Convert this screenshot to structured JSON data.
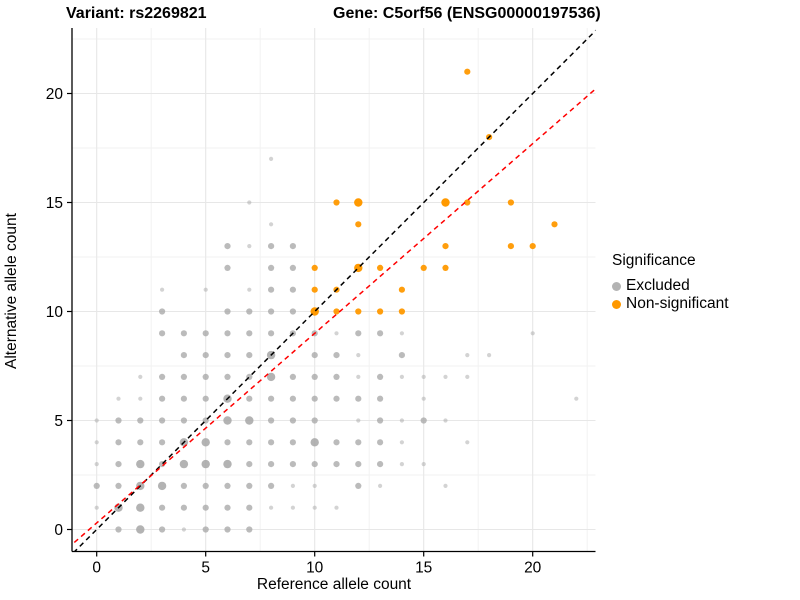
{
  "title": {
    "variant": "Variant: rs2269821",
    "gene": "Gene: C5orf56 (ENSG00000197536)"
  },
  "legend": {
    "title": "Significance",
    "items": [
      {
        "label": "Excluded",
        "color": "#B3B3B3"
      },
      {
        "label": "Non-significant",
        "color": "#FF9900"
      }
    ]
  },
  "chart_data": {
    "type": "scatter",
    "title": "Variant: rs2269821   Gene: C5orf56 (ENSG00000197536)",
    "xlabel": "Reference allele count",
    "ylabel": "Alternative allele count",
    "xlim": [
      -1.15,
      22.9
    ],
    "ylim": [
      -1.05,
      23.0
    ],
    "x_ticks": [
      0,
      5,
      10,
      15,
      20
    ],
    "y_ticks": [
      0,
      5,
      10,
      15,
      20
    ],
    "minor_ticks": [
      2.5,
      7.5,
      12.5,
      17.5,
      22.5
    ],
    "grid": true,
    "legend_position": "right",
    "point_colors": {
      "excluded": "#A8A8A8",
      "non_significant": "#FF9900"
    },
    "series": [
      {
        "name": "Excluded",
        "color": "#A8A8A8",
        "points": [
          [
            1,
            0,
            "m"
          ],
          [
            2,
            0,
            "l"
          ],
          [
            3,
            0,
            "m"
          ],
          [
            4,
            0,
            "s"
          ],
          [
            5,
            0,
            "m"
          ],
          [
            6,
            0,
            "m"
          ],
          [
            7,
            0,
            "m"
          ],
          [
            0,
            1,
            "s"
          ],
          [
            1,
            1,
            "l"
          ],
          [
            2,
            1,
            "l"
          ],
          [
            3,
            1,
            "m"
          ],
          [
            4,
            1,
            "m"
          ],
          [
            5,
            1,
            "m"
          ],
          [
            6,
            1,
            "m"
          ],
          [
            7,
            1,
            "m"
          ],
          [
            8,
            1,
            "s"
          ],
          [
            9,
            1,
            "s"
          ],
          [
            10,
            1,
            "s"
          ],
          [
            11,
            1,
            "s"
          ],
          [
            0,
            2,
            "m"
          ],
          [
            1,
            2,
            "m"
          ],
          [
            2,
            2,
            "l"
          ],
          [
            3,
            2,
            "l"
          ],
          [
            4,
            2,
            "m"
          ],
          [
            5,
            2,
            "m"
          ],
          [
            6,
            2,
            "m"
          ],
          [
            7,
            2,
            "m"
          ],
          [
            8,
            2,
            "m"
          ],
          [
            9,
            2,
            "s"
          ],
          [
            10,
            2,
            "s"
          ],
          [
            12,
            2,
            "m"
          ],
          [
            13,
            2,
            "s"
          ],
          [
            16,
            2,
            "s"
          ],
          [
            0,
            3,
            "s"
          ],
          [
            1,
            3,
            "m"
          ],
          [
            2,
            3,
            "l"
          ],
          [
            3,
            3,
            "m"
          ],
          [
            4,
            3,
            "l"
          ],
          [
            5,
            3,
            "l"
          ],
          [
            6,
            3,
            "l"
          ],
          [
            7,
            3,
            "m"
          ],
          [
            8,
            3,
            "m"
          ],
          [
            9,
            3,
            "m"
          ],
          [
            10,
            3,
            "m"
          ],
          [
            11,
            3,
            "m"
          ],
          [
            12,
            3,
            "m"
          ],
          [
            13,
            3,
            "m"
          ],
          [
            14,
            3,
            "s"
          ],
          [
            15,
            3,
            "s"
          ],
          [
            0,
            4,
            "s"
          ],
          [
            1,
            4,
            "m"
          ],
          [
            2,
            4,
            "m"
          ],
          [
            3,
            4,
            "m"
          ],
          [
            4,
            4,
            "l"
          ],
          [
            5,
            4,
            "l"
          ],
          [
            6,
            4,
            "m"
          ],
          [
            7,
            4,
            "m"
          ],
          [
            8,
            4,
            "m"
          ],
          [
            9,
            4,
            "m"
          ],
          [
            10,
            4,
            "l"
          ],
          [
            11,
            4,
            "m"
          ],
          [
            12,
            4,
            "m"
          ],
          [
            13,
            4,
            "m"
          ],
          [
            14,
            4,
            "s"
          ],
          [
            17,
            4,
            "s"
          ],
          [
            0,
            5,
            "s"
          ],
          [
            1,
            5,
            "m"
          ],
          [
            2,
            5,
            "m"
          ],
          [
            3,
            5,
            "m"
          ],
          [
            4,
            5,
            "m"
          ],
          [
            5,
            5,
            "m"
          ],
          [
            6,
            5,
            "l"
          ],
          [
            7,
            5,
            "l"
          ],
          [
            8,
            5,
            "m"
          ],
          [
            9,
            5,
            "m"
          ],
          [
            10,
            5,
            "m"
          ],
          [
            12,
            5,
            "s"
          ],
          [
            13,
            5,
            "m"
          ],
          [
            14,
            5,
            "s"
          ],
          [
            15,
            5,
            "m"
          ],
          [
            16,
            5,
            "s"
          ],
          [
            1,
            6,
            "s"
          ],
          [
            2,
            6,
            "s"
          ],
          [
            3,
            6,
            "m"
          ],
          [
            4,
            6,
            "m"
          ],
          [
            5,
            6,
            "m"
          ],
          [
            6,
            6,
            "l"
          ],
          [
            7,
            6,
            "m"
          ],
          [
            8,
            6,
            "m"
          ],
          [
            9,
            6,
            "m"
          ],
          [
            10,
            6,
            "m"
          ],
          [
            11,
            6,
            "m"
          ],
          [
            12,
            6,
            "m"
          ],
          [
            13,
            6,
            "m"
          ],
          [
            15,
            6,
            "s"
          ],
          [
            22,
            6,
            "s"
          ],
          [
            2,
            7,
            "s"
          ],
          [
            3,
            7,
            "m"
          ],
          [
            4,
            7,
            "m"
          ],
          [
            5,
            7,
            "m"
          ],
          [
            6,
            7,
            "m"
          ],
          [
            7,
            7,
            "m"
          ],
          [
            8,
            7,
            "l"
          ],
          [
            9,
            7,
            "m"
          ],
          [
            10,
            7,
            "m"
          ],
          [
            11,
            7,
            "m"
          ],
          [
            12,
            7,
            "s"
          ],
          [
            13,
            7,
            "m"
          ],
          [
            14,
            7,
            "s"
          ],
          [
            15,
            7,
            "s"
          ],
          [
            16,
            7,
            "s"
          ],
          [
            17,
            7,
            "s"
          ],
          [
            4,
            8,
            "m"
          ],
          [
            5,
            8,
            "m"
          ],
          [
            6,
            8,
            "m"
          ],
          [
            7,
            8,
            "m"
          ],
          [
            8,
            8,
            "l"
          ],
          [
            10,
            8,
            "m"
          ],
          [
            11,
            8,
            "m"
          ],
          [
            12,
            8,
            "s"
          ],
          [
            14,
            8,
            "m"
          ],
          [
            17,
            8,
            "s"
          ],
          [
            18,
            8,
            "s"
          ],
          [
            3,
            9,
            "m"
          ],
          [
            4,
            9,
            "m"
          ],
          [
            5,
            9,
            "m"
          ],
          [
            6,
            9,
            "m"
          ],
          [
            7,
            9,
            "m"
          ],
          [
            8,
            9,
            "m"
          ],
          [
            9,
            9,
            "m"
          ],
          [
            10,
            9,
            "m"
          ],
          [
            11,
            9,
            "s"
          ],
          [
            12,
            9,
            "m"
          ],
          [
            13,
            9,
            "m"
          ],
          [
            14,
            9,
            "s"
          ],
          [
            20,
            9,
            "s"
          ],
          [
            3,
            10,
            "m"
          ],
          [
            6,
            10,
            "m"
          ],
          [
            7,
            10,
            "m"
          ],
          [
            8,
            10,
            "m"
          ],
          [
            9,
            10,
            "m"
          ],
          [
            3,
            11,
            "s"
          ],
          [
            5,
            11,
            "s"
          ],
          [
            7,
            11,
            "s"
          ],
          [
            8,
            11,
            "m"
          ],
          [
            9,
            11,
            "m"
          ],
          [
            6,
            12,
            "m"
          ],
          [
            8,
            12,
            "m"
          ],
          [
            9,
            12,
            "m"
          ],
          [
            6,
            13,
            "m"
          ],
          [
            7,
            13,
            "s"
          ],
          [
            8,
            13,
            "m"
          ],
          [
            9,
            13,
            "m"
          ],
          [
            8,
            14,
            "s"
          ],
          [
            7,
            15,
            "s"
          ],
          [
            8,
            17,
            "s"
          ]
        ]
      },
      {
        "name": "Non-significant",
        "color": "#FF9900",
        "points": [
          [
            10,
            10,
            "l"
          ],
          [
            11,
            10,
            "m"
          ],
          [
            12,
            10,
            "m"
          ],
          [
            13,
            10,
            "m"
          ],
          [
            14,
            10,
            "m"
          ],
          [
            10,
            11,
            "m"
          ],
          [
            11,
            11,
            "m"
          ],
          [
            14,
            11,
            "m"
          ],
          [
            10,
            12,
            "m"
          ],
          [
            12,
            12,
            "l"
          ],
          [
            13,
            12,
            "m"
          ],
          [
            15,
            12,
            "m"
          ],
          [
            16,
            12,
            "m"
          ],
          [
            16,
            13,
            "m"
          ],
          [
            19,
            13,
            "m"
          ],
          [
            20,
            13,
            "m"
          ],
          [
            12,
            14,
            "m"
          ],
          [
            21,
            14,
            "m"
          ],
          [
            11,
            15,
            "m"
          ],
          [
            12,
            15,
            "l"
          ],
          [
            16,
            15,
            "l"
          ],
          [
            17,
            15,
            "m"
          ],
          [
            19,
            15,
            "m"
          ],
          [
            18,
            18,
            "m"
          ],
          [
            17,
            21,
            "m"
          ]
        ]
      }
    ],
    "lines": [
      {
        "name": "identity-line",
        "color": "#000000",
        "dashed": true,
        "slope": 1.0,
        "intercept": 0
      },
      {
        "name": "ratio-line",
        "color": "#FF0000",
        "dashed": true,
        "slope": 0.87,
        "intercept": 0.3
      }
    ]
  }
}
